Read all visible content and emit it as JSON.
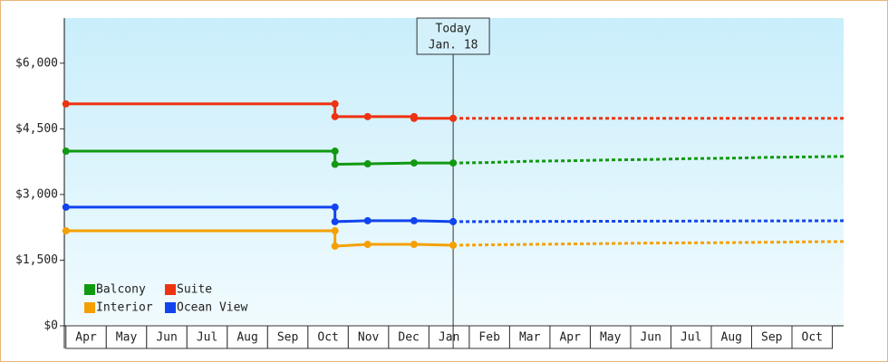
{
  "chart_data": {
    "type": "line",
    "xlim": [
      -0.04,
      19.28
    ],
    "xticks": [
      {
        "value": 0.5,
        "label": "Apr"
      },
      {
        "value": 1.5,
        "label": "May"
      },
      {
        "value": 2.5,
        "label": "Jun"
      },
      {
        "value": 3.5,
        "label": "Jul"
      },
      {
        "value": 4.5,
        "label": "Aug"
      },
      {
        "value": 5.5,
        "label": "Sep"
      },
      {
        "value": 6.5,
        "label": "Oct"
      },
      {
        "value": 7.5,
        "label": "Nov"
      },
      {
        "value": 8.5,
        "label": "Dec"
      },
      {
        "value": 9.5,
        "label": "Jan"
      },
      {
        "value": 10.5,
        "label": "Feb"
      },
      {
        "value": 11.5,
        "label": "Mar"
      },
      {
        "value": 12.5,
        "label": "Apr"
      },
      {
        "value": 13.5,
        "label": "May"
      },
      {
        "value": 14.5,
        "label": "Jun"
      },
      {
        "value": 15.5,
        "label": "Jul"
      },
      {
        "value": 16.5,
        "label": "Aug"
      },
      {
        "value": 17.5,
        "label": "Sep"
      },
      {
        "value": 18.5,
        "label": "Oct"
      }
    ],
    "ylim": [
      0,
      7030
    ],
    "yticks": [
      {
        "value": 0,
        "label": "$0"
      },
      {
        "value": 1500,
        "label": "$1,500"
      },
      {
        "value": 3000,
        "label": "$3,000"
      },
      {
        "value": 4500,
        "label": "$4,500"
      },
      {
        "value": 6000,
        "label": "$6,000"
      }
    ],
    "legend": "lower left",
    "today": {
      "label": "Today",
      "date": "Jan. 18",
      "x": 9.6
    },
    "series": [
      {
        "name": "Balcony",
        "color": "#119911",
        "x": [
          0,
          6.67,
          6.67,
          7.48,
          8.63,
          9.6
        ],
        "values": [
          3990,
          3990,
          3690,
          3700,
          3720,
          3720
        ],
        "forecast": {
          "x": [
            9.6,
            10.5,
            11.5,
            12.5,
            13.5,
            14.5,
            15.5,
            16.5,
            17.5,
            18.5,
            19.28
          ],
          "values": [
            3720,
            3730,
            3760,
            3770,
            3790,
            3800,
            3820,
            3830,
            3850,
            3860,
            3870
          ]
        }
      },
      {
        "name": "Suite",
        "color": "#ee3311",
        "x": [
          0,
          6.67,
          6.67,
          7.48,
          8.63,
          8.63,
          9.6
        ],
        "values": [
          5070,
          5070,
          4780,
          4780,
          4780,
          4740,
          4740
        ],
        "forecast": {
          "x": [
            9.6,
            19.28
          ],
          "values": [
            4740,
            4740
          ]
        }
      },
      {
        "name": "Interior",
        "color": "#f5a000",
        "x": [
          0,
          6.67,
          6.67,
          7.48,
          8.63,
          9.6
        ],
        "values": [
          2170,
          2170,
          1820,
          1860,
          1860,
          1840
        ],
        "forecast": {
          "x": [
            9.6,
            10.5,
            11.5,
            12.5,
            13.5,
            14.5,
            15.5,
            16.5,
            17.5,
            18.5,
            19.28
          ],
          "values": [
            1840,
            1850,
            1860,
            1870,
            1880,
            1890,
            1895,
            1900,
            1910,
            1920,
            1925
          ]
        }
      },
      {
        "name": "Ocean View",
        "color": "#1144ee",
        "x": [
          0,
          6.67,
          6.67,
          7.48,
          8.63,
          9.6
        ],
        "values": [
          2710,
          2710,
          2380,
          2400,
          2400,
          2380
        ],
        "forecast": {
          "x": [
            9.6,
            19.28
          ],
          "values": [
            2380,
            2400
          ]
        }
      }
    ]
  }
}
